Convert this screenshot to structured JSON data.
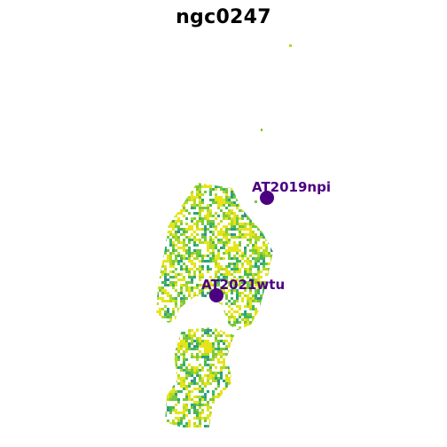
{
  "title": "ngc0247",
  "markers": [
    {
      "name": "AT2019npi"
    },
    {
      "name": "AT2021wtu"
    }
  ],
  "colors": {
    "marker": "#4b0082",
    "colormap": [
      "#3a8f8c",
      "#2aa57a",
      "#44b65c",
      "#79c93a",
      "#b3d927",
      "#e6e419"
    ]
  }
}
